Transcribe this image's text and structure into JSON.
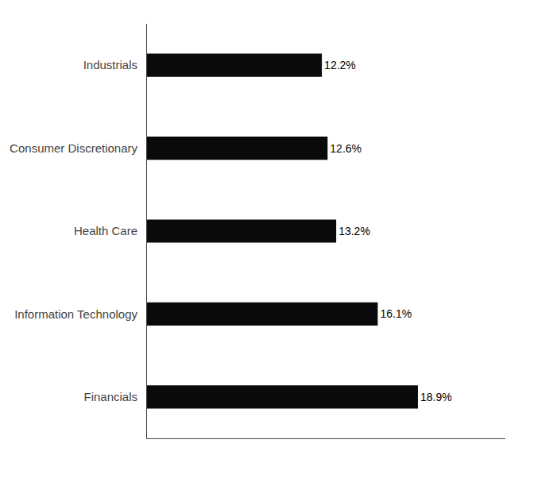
{
  "chart_data": {
    "type": "bar",
    "orientation": "horizontal",
    "categories": [
      "Financials",
      "Information Technology",
      "Health Care",
      "Consumer Discretionary",
      "Industrials"
    ],
    "values": [
      18.9,
      16.1,
      13.2,
      12.6,
      12.2
    ],
    "value_labels": [
      "18.9%",
      "16.1%",
      "13.2%",
      "12.6%",
      "12.2%"
    ],
    "data_labels": true,
    "color": "#0a0a0a",
    "xlim": [
      0,
      25
    ],
    "tick_labels": "y",
    "grid": false
  }
}
